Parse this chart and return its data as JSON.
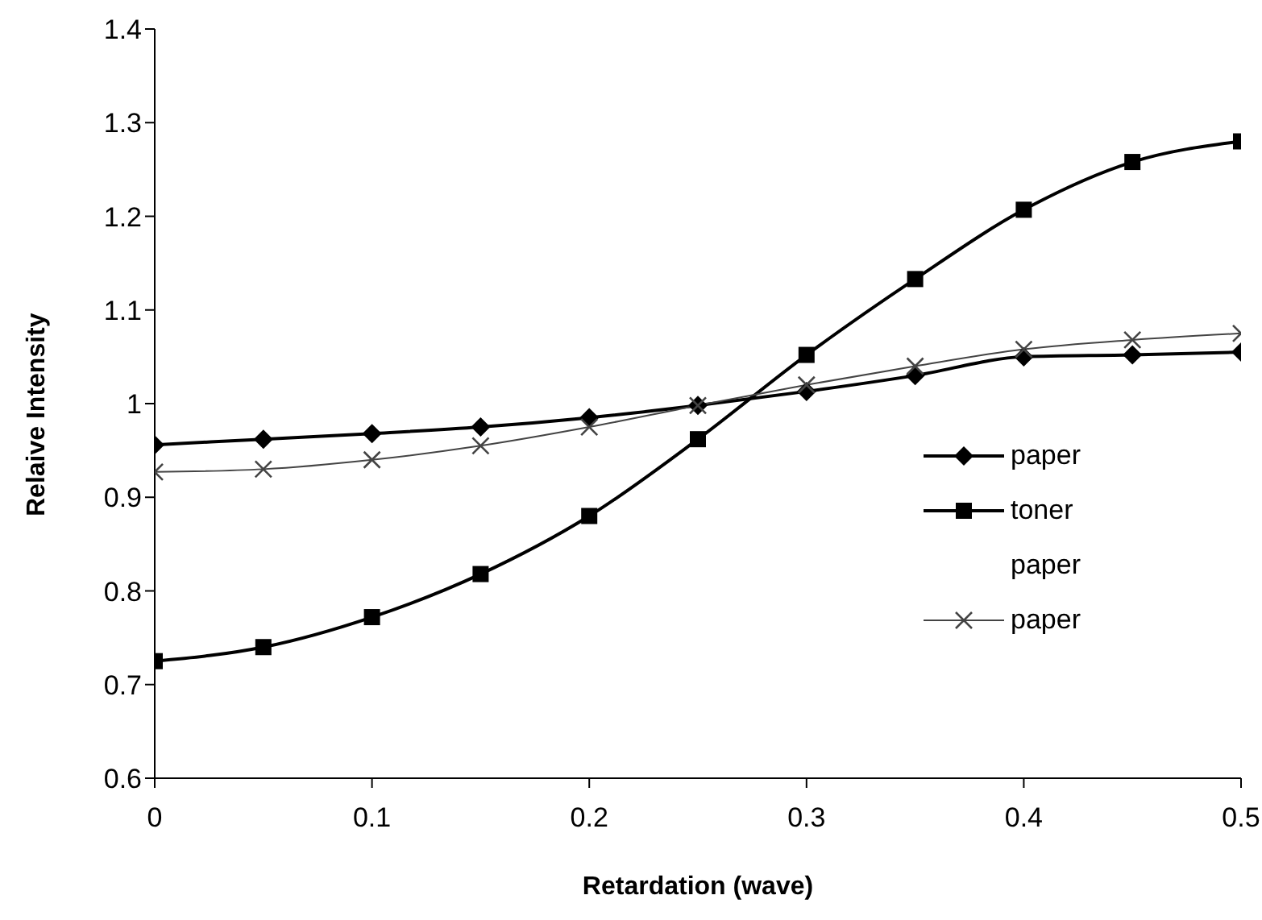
{
  "chart_data": {
    "type": "line",
    "xlabel": "Retardation (wave)",
    "ylabel": "Relaive Intensity",
    "x": [
      0,
      0.05,
      0.1,
      0.15,
      0.2,
      0.25,
      0.3,
      0.35,
      0.4,
      0.45,
      0.5
    ],
    "series": [
      {
        "name": "paper",
        "color": "#000000",
        "marker": "diamond",
        "values": [
          0.956,
          0.962,
          0.968,
          0.975,
          0.985,
          0.998,
          1.013,
          1.03,
          1.05,
          1.052,
          1.055
        ]
      },
      {
        "name": "toner",
        "color": "#000000",
        "marker": "square",
        "values": [
          0.725,
          0.74,
          0.772,
          0.818,
          0.88,
          0.962,
          1.052,
          1.133,
          1.207,
          1.258,
          1.28
        ]
      },
      {
        "name": "paper",
        "marker": "none",
        "values": [
          null,
          null,
          null,
          null,
          null,
          null,
          null,
          null,
          null,
          null,
          null
        ]
      },
      {
        "name": "paper",
        "color": "#444444",
        "marker": "cross",
        "values": [
          0.927,
          0.93,
          0.94,
          0.955,
          0.975,
          0.998,
          1.02,
          1.04,
          1.058,
          1.068,
          1.075
        ]
      }
    ],
    "xlim": [
      0,
      0.5
    ],
    "xticks": [
      0,
      0.1,
      0.2,
      0.3,
      0.4,
      0.5
    ],
    "ylim": [
      0.6,
      1.4
    ],
    "yticks": [
      0.6,
      0.7,
      0.8,
      0.9,
      1,
      1.1,
      1.2,
      1.3,
      1.4
    ],
    "grid": false,
    "legend": "right"
  }
}
